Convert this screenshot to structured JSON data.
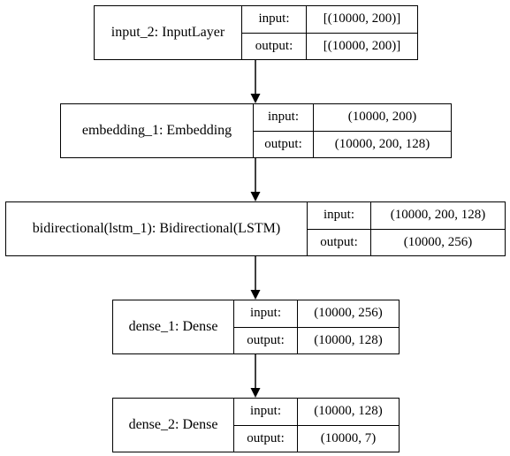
{
  "layers": [
    {
      "name": "input_2: InputLayer",
      "input_label": "input:",
      "input_value": "[(10000, 200)]",
      "output_label": "output:",
      "output_value": "[(10000, 200)]"
    },
    {
      "name": "embedding_1: Embedding",
      "input_label": "input:",
      "input_value": "(10000, 200)",
      "output_label": "output:",
      "output_value": "(10000, 200, 128)"
    },
    {
      "name": "bidirectional(lstm_1): Bidirectional(LSTM)",
      "input_label": "input:",
      "input_value": "(10000, 200, 128)",
      "output_label": "output:",
      "output_value": "(10000, 256)"
    },
    {
      "name": "dense_1: Dense",
      "input_label": "input:",
      "input_value": "(10000, 256)",
      "output_label": "output:",
      "output_value": "(10000, 128)"
    },
    {
      "name": "dense_2: Dense",
      "input_label": "input:",
      "input_value": "(10000, 128)",
      "output_label": "output:",
      "output_value": "(10000, 7)"
    }
  ]
}
